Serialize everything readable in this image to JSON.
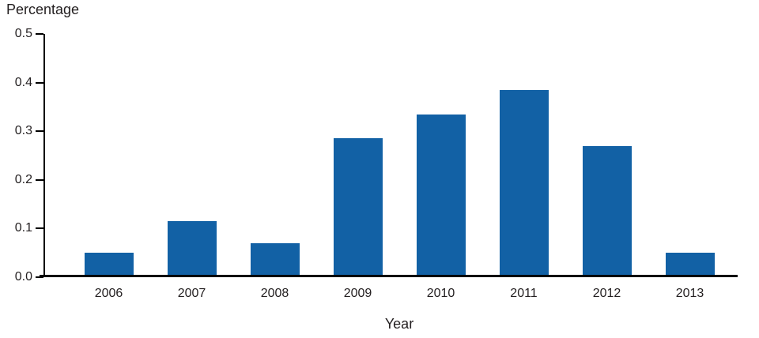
{
  "chart_data": {
    "type": "bar",
    "title": "",
    "xlabel": "Year",
    "ylabel": "Percentage",
    "categories": [
      "2006",
      "2007",
      "2008",
      "2009",
      "2010",
      "2011",
      "2012",
      "2013"
    ],
    "values": [
      0.05,
      0.115,
      0.07,
      0.285,
      0.335,
      0.385,
      0.27,
      0.051
    ],
    "ylim": [
      0.0,
      0.5
    ],
    "yticks": [
      0.0,
      0.1,
      0.2,
      0.3,
      0.4,
      0.5
    ],
    "bar_color": "#1261A5",
    "axis_color": "#000000",
    "grid": false,
    "legend_position": "none"
  }
}
